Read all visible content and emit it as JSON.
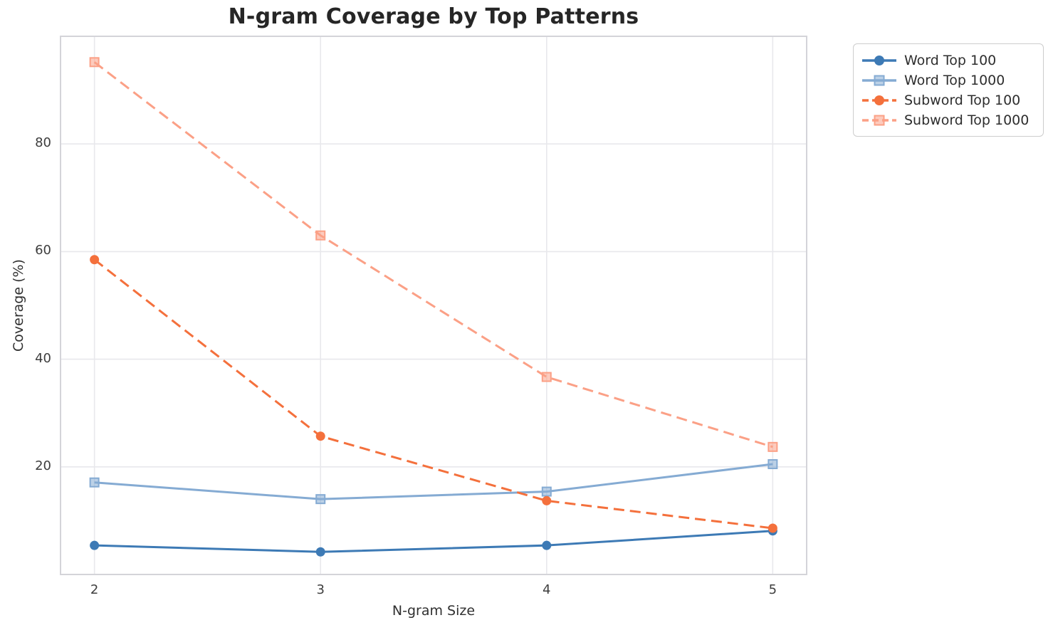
{
  "chart_data": {
    "type": "line",
    "title": "N-gram Coverage by Top Patterns",
    "xlabel": "N-gram Size",
    "ylabel": "Coverage (%)",
    "x": [
      2,
      3,
      4,
      5
    ],
    "xticks": [
      "2",
      "3",
      "4",
      "5"
    ],
    "yticks": [
      20,
      40,
      60,
      80
    ],
    "xlim": [
      1.85,
      5.15
    ],
    "ylim": [
      0,
      100
    ],
    "grid": true,
    "legend_position": "outside-top-right",
    "series": [
      {
        "name": "Word Top 100",
        "values": [
          5.4,
          4.2,
          5.4,
          8.1
        ],
        "color": "#3d7ab5",
        "line_style": "solid",
        "marker": "circle"
      },
      {
        "name": "Word Top 1000",
        "values": [
          17.1,
          14.0,
          15.4,
          20.5
        ],
        "color": "#85abd3",
        "line_style": "solid",
        "marker": "square"
      },
      {
        "name": "Subword Top 100",
        "values": [
          58.5,
          25.7,
          13.7,
          8.6
        ],
        "color": "#f4703c",
        "line_style": "dashed",
        "marker": "circle"
      },
      {
        "name": "Subword Top 1000",
        "values": [
          95.2,
          63.0,
          36.7,
          23.7
        ],
        "color": "#fba086",
        "line_style": "dashed",
        "marker": "square"
      }
    ],
    "colors": {
      "gridline": "#e8e8ec",
      "spine": "#d4d4d9",
      "title_text": "#262626",
      "tick_text": "#3d3d3d",
      "axis_label_text": "#303030",
      "legend_border": "#cdcdcd",
      "background": "#ffffff"
    }
  }
}
